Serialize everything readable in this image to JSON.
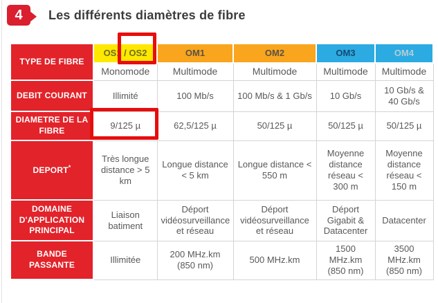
{
  "page": {
    "badge_number": "4",
    "title": "Les différents diamètres de fibre"
  },
  "colors": {
    "label_red": "#e2232a",
    "header_yellow": "#ffe800",
    "header_orange": "#f9a51d",
    "header_blue": "#2babe2",
    "annotation_red": "#e70d0d",
    "cell_border_gray": "#d4d4d4",
    "body_text": "#58585a"
  },
  "table": {
    "corner": "TYPE DE FIBRE",
    "cols": [
      {
        "label": "OS1 / OS2",
        "mode": "Monomode"
      },
      {
        "label": "OM1",
        "mode": "Multimode"
      },
      {
        "label": "OM2",
        "mode": "Multimode"
      },
      {
        "label": "OM3",
        "mode": "Multimode"
      },
      {
        "label": "OM4",
        "mode": "Multimode"
      }
    ],
    "rows": [
      {
        "label": "DEBIT COURANT",
        "cells": [
          "Illimité",
          "100 Mb/s",
          "100 Mb/s & 1 Gb/s",
          "10 Gb/s",
          "10 Gb/s & 40 Gb/s"
        ]
      },
      {
        "label": "DIAMETRE DE LA FIBRE",
        "cells": [
          "9/125 µ",
          "62,5/125 µ",
          "50/125 µ",
          "50/125 µ",
          "50/125 µ"
        ]
      },
      {
        "label": "DEPORT",
        "sup": "*",
        "cells": [
          "Très longue distance > 5 km",
          "Longue distance < 5 km",
          "Longue distance < 550 m",
          "Moyenne distance réseau < 300 m",
          "Moyenne distance réseau < 150 m"
        ]
      },
      {
        "label": "DOMAINE D'APPLICATION PRINCIPAL",
        "cells": [
          "Liaison batiment",
          "Déport vidéosurveillance et réseau",
          "Déport vidéosurveillance et réseau",
          "Déport Gigabit & Datacenter",
          "Datacenter"
        ]
      },
      {
        "label": "BANDE PASSANTE",
        "cells": [
          "Illimitée",
          "200 MHz.km (850 nm)",
          "500 MHz.km",
          "1500 MHz.km (850 nm)",
          "3500 MHz.km (850 nm)"
        ]
      }
    ]
  },
  "annotations": [
    {
      "highlight": "OS2"
    },
    {
      "highlight": "9/125 µ"
    }
  ]
}
